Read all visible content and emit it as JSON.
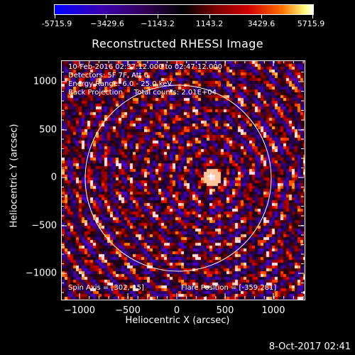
{
  "colorbar": {
    "tick_labels": [
      "-5715.9",
      "−3429.6",
      "−1143.2",
      "1143.2",
      "3429.6",
      "5715.9"
    ]
  },
  "plot": {
    "title": "Reconstructed RHESSI Image",
    "info_lines": [
      "10-Feb-2016 02:37:12.000 to 02:47:12.000",
      "Detectors: 5F 7F, Att 0",
      "Energy Range: 6.0 - 25.0 keV",
      "Back Projection     Total counts: 2.01E+04"
    ],
    "spin_axis": "Spin Axis = [302,-15]",
    "flare_position": "Flare Position = [-359,281]",
    "xlabel": "Heliocentric X (arcsec)",
    "ylabel": "Heliocentric Y (arcsec)",
    "x_ticks": [
      "−1000",
      "−500",
      "0",
      "500",
      "1000"
    ],
    "y_ticks": [
      "1000",
      "500",
      "0",
      "−500",
      "−1000"
    ],
    "colors": {
      "solar_limb": "#ffffff",
      "background": "#000000"
    }
  },
  "timestamp": "8-Oct-2017 02:41"
}
